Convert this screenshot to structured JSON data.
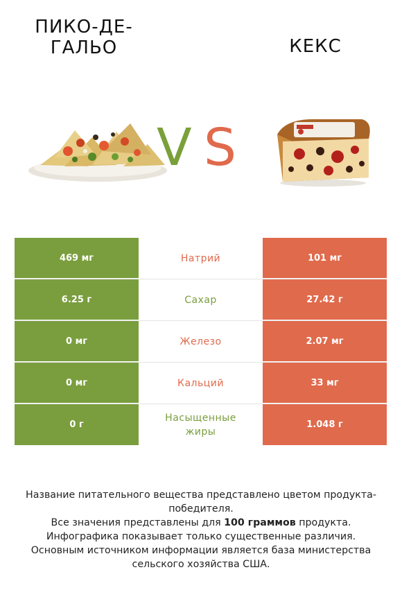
{
  "header": {
    "left_title": "ПИКО-ДЕ-ГАЛЬО",
    "right_title": "КЕКС",
    "vs_v": "V",
    "vs_s": "S"
  },
  "colors": {
    "left_winner": "#7a9e3e",
    "right_winner": "#e06a4c"
  },
  "rows": [
    {
      "left": "469 мг",
      "nutrient": "Натрий",
      "right": "101 мг",
      "winner": "right"
    },
    {
      "left": "6.25 г",
      "nutrient": "Сахар",
      "right": "27.42 г",
      "winner": "left"
    },
    {
      "left": "0 мг",
      "nutrient": "Железо",
      "right": "2.07 мг",
      "winner": "right"
    },
    {
      "left": "0 мг",
      "nutrient": "Кальций",
      "right": "33 мг",
      "winner": "right"
    },
    {
      "left": "0 г",
      "nutrient": "Насыщенные жиры",
      "right": "1.048 г",
      "winner": "left"
    }
  ],
  "footer": {
    "line1": "Название питательного вещества представлено цветом продукта-победителя.",
    "line2_pre": "Все значения представлены для ",
    "line2_bold": "100 граммов",
    "line2_post": " продукта.",
    "line3": "Инфографика показывает только существенные различия.",
    "line4": "Основным источником информации является база министерства сельского хозяйства США."
  }
}
